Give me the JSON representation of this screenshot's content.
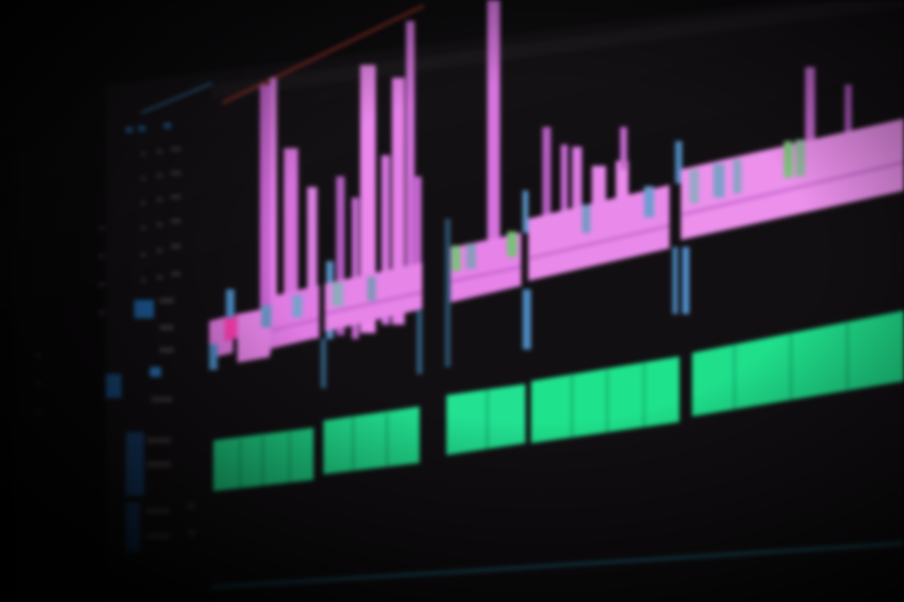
{
  "scene": {
    "description_free": true
  },
  "colors": {
    "background": "#0b090b",
    "panel": "#151215",
    "video_clip": "#e27be4",
    "video_clip_dark": "#b95cc4",
    "video_clip_hot": "#ff3fb4",
    "audio_clip": "#1fe38c",
    "audio_clip_dark": "#12a868",
    "track_control": "#2f7fd1",
    "thumbnail_blue": "#5a8fc4",
    "thumbnail_green": "#6fb36a",
    "playhead_line": "#c0392b",
    "bottom_scroll": "#1f6f86"
  },
  "icons": {
    "track_lock": "lock-icon",
    "track_eye": "eye-icon",
    "track_mute": "speaker-icon",
    "track_target": "target-icon"
  }
}
